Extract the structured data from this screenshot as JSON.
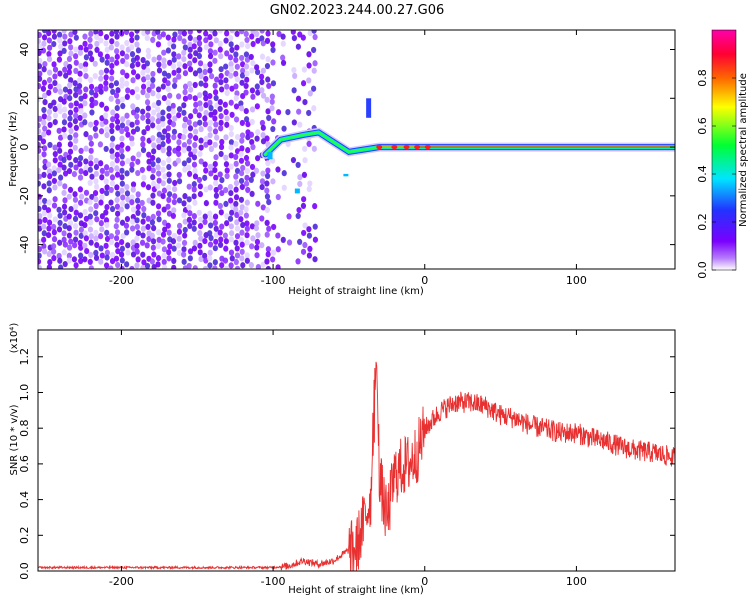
{
  "title": "GN02.2023.244.00.27.G06",
  "chart_data": [
    {
      "type": "heatmap",
      "xlabel": "Height of straight line (km)",
      "ylabel": "Frequency (Hz)",
      "xlim": [
        -255,
        165
      ],
      "ylim": [
        -50,
        48
      ],
      "xticks": [
        -200,
        -100,
        0,
        100
      ],
      "yticks": [
        -40,
        -20,
        0,
        20,
        40
      ],
      "grid": false,
      "colorbar": {
        "label": "Normalized spectral amplitude",
        "ticks": [
          "0.0",
          "0.2",
          "0.4",
          "0.6",
          "0.8"
        ],
        "range": [
          0,
          1
        ],
        "colormap": [
          "#ffffff",
          "#7a00ff",
          "#2233ff",
          "#00e5ff",
          "#00ff33",
          "#ffff00",
          "#ff6600",
          "#ff0044",
          "#ff00aa"
        ]
      },
      "features": [
        {
          "name": "noise",
          "x_range": [
            -255,
            -70
          ],
          "y_range": [
            -50,
            48
          ]
        },
        {
          "name": "tone",
          "points": [
            [
              -105,
              -3
            ],
            [
              -95,
              3
            ],
            [
              -80,
              5
            ],
            [
              -70,
              6
            ],
            [
              -60,
              2
            ],
            [
              -50,
              -2
            ],
            [
              -40,
              -1
            ],
            [
              -30,
              0
            ],
            [
              0,
              0
            ],
            [
              165,
              0
            ]
          ]
        },
        {
          "name": "burst",
          "x": -37,
          "y_range": [
            12,
            20
          ]
        }
      ]
    },
    {
      "type": "line",
      "xlabel": "Height of straight line (km)",
      "ylabel": "SNR (10 * v/v)",
      "y_multiplier": "(x10⁴)",
      "xlim": [
        -255,
        165
      ],
      "ylim": [
        0,
        1.35
      ],
      "xticks": [
        -200,
        -100,
        0,
        100
      ],
      "yticks": [
        "0.0",
        "0.2",
        "0.4",
        "0.6",
        "0.8",
        "1.0",
        "1.2"
      ],
      "grid": false,
      "series": [
        {
          "color": "#e83030",
          "x": [
            -255,
            -200,
            -150,
            -100,
            -90,
            -80,
            -70,
            -60,
            -50,
            -45,
            -40,
            -35,
            -32,
            -30,
            -28,
            -25,
            -20,
            -15,
            -10,
            -5,
            0,
            10,
            20,
            30,
            40,
            50,
            60,
            70,
            80,
            90,
            100,
            110,
            120,
            130,
            140,
            150,
            165
          ],
          "values": [
            0.02,
            0.02,
            0.02,
            0.02,
            0.03,
            0.06,
            0.04,
            0.06,
            0.12,
            0.15,
            0.3,
            0.45,
            1.2,
            0.55,
            0.45,
            0.3,
            0.55,
            0.6,
            0.62,
            0.68,
            0.8,
            0.9,
            0.95,
            0.95,
            0.93,
            0.88,
            0.86,
            0.82,
            0.8,
            0.78,
            0.78,
            0.75,
            0.73,
            0.7,
            0.68,
            0.67,
            0.64
          ]
        }
      ]
    }
  ]
}
